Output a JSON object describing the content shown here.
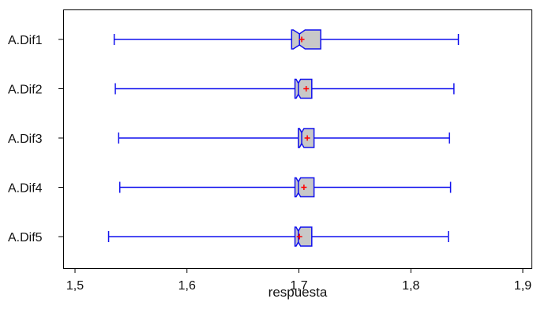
{
  "chart_data": {
    "type": "notched-boxplot-horizontal",
    "title": "",
    "xlabel": "respuesta",
    "ylabel": "",
    "xlim": [
      1.5,
      1.9
    ],
    "x_ticks": [
      1.5,
      1.6,
      1.7,
      1.8,
      1.9
    ],
    "x_tick_labels": [
      "1,5",
      "1,6",
      "1,7",
      "1,8",
      "1,9"
    ],
    "grid": false,
    "legend": "none",
    "colors": {
      "box_stroke": "#1010ee",
      "box_fill": "#c8c8c8",
      "mean_marker": "#ff0000",
      "axes": "#000000"
    },
    "series": [
      {
        "label": "A.Dif1",
        "whisker_low": 1.535,
        "q1": 1.6935,
        "notch_low": 1.695,
        "median": 1.7005,
        "notch_high": 1.7055,
        "q3": 1.7195,
        "whisker_high": 1.8425,
        "mean": 1.7025
      },
      {
        "label": "A.Dif2",
        "whisker_low": 1.536,
        "q1": 1.6965,
        "notch_low": 1.6975,
        "median": 1.6995,
        "notch_high": 1.7015,
        "q3": 1.7115,
        "whisker_high": 1.8385,
        "mean": 1.7065
      },
      {
        "label": "A.Dif3",
        "whisker_low": 1.539,
        "q1": 1.6995,
        "notch_low": 1.7005,
        "median": 1.7025,
        "notch_high": 1.7045,
        "q3": 1.7135,
        "whisker_high": 1.8345,
        "mean": 1.7075
      },
      {
        "label": "A.Dif4",
        "whisker_low": 1.54,
        "q1": 1.6965,
        "notch_low": 1.6975,
        "median": 1.6995,
        "notch_high": 1.7015,
        "q3": 1.7135,
        "whisker_high": 1.8355,
        "mean": 1.7045
      },
      {
        "label": "A.Dif5",
        "whisker_low": 1.53,
        "q1": 1.6965,
        "notch_low": 1.6975,
        "median": 1.6995,
        "notch_high": 1.7015,
        "q3": 1.7115,
        "whisker_high": 1.8335,
        "mean": 1.7005
      }
    ]
  }
}
